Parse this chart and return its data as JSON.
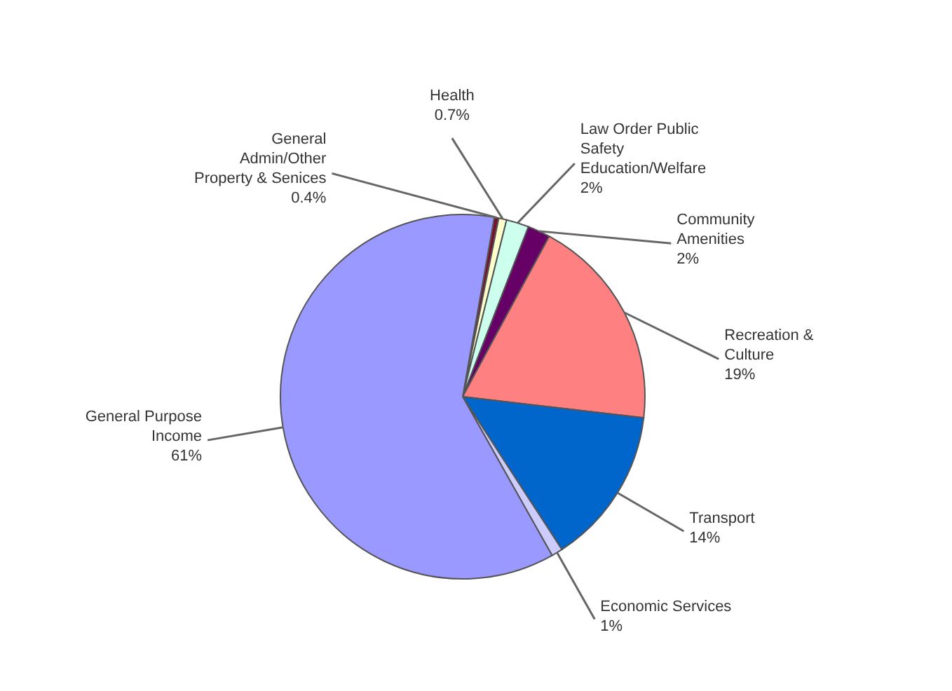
{
  "chart_data": {
    "type": "pie",
    "categories": [
      "General Admin/Other Property & Senices",
      "Health",
      "Law Order Public Safety Education/Welfare",
      "Community Amenities",
      "Recreation & Culture",
      "Transport",
      "Economic Services",
      "General Purpose Income"
    ],
    "values": [
      0.4,
      0.7,
      2,
      2,
      19,
      14,
      1,
      61
    ],
    "value_labels": [
      "0.4%",
      "0.7%",
      "2%",
      "2%",
      "19%",
      "14%",
      "1%",
      "61%"
    ],
    "colors": [
      "#7a1030",
      "#ffffcc",
      "#ccffee",
      "#660066",
      "#ff8080",
      "#0066cc",
      "#ccccff",
      "#9999ff"
    ]
  }
}
